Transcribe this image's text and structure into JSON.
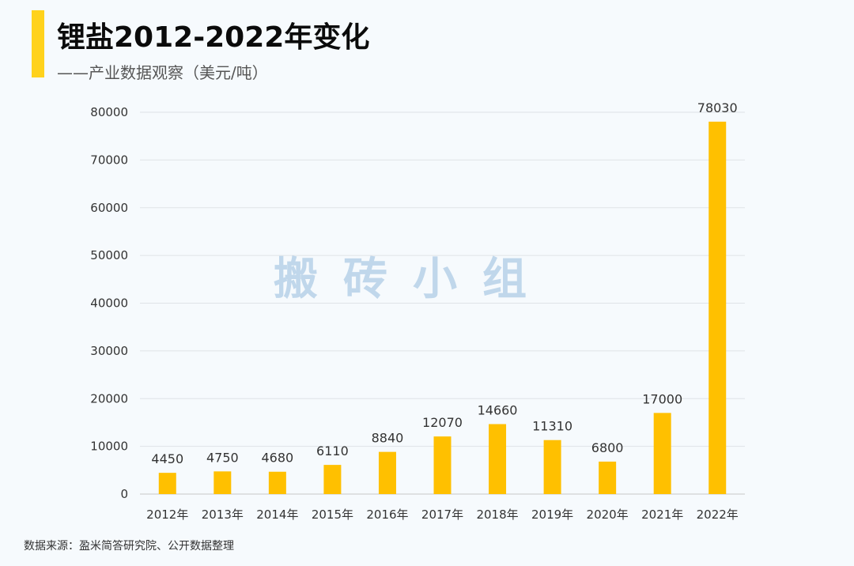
{
  "title": "锂盐2012-2022年变化",
  "subtitle": "——产业数据观察（美元/吨）",
  "watermark": "搬砖小组",
  "source": "数据来源：盈米简答研究院、公开数据整理",
  "colors": {
    "accent": "#ffd21c",
    "bar": "#ffc000",
    "background": "#f6fafd"
  },
  "chart_data": {
    "type": "bar",
    "title": "锂盐2012-2022年变化",
    "subtitle": "——产业数据观察（美元/吨）",
    "categories": [
      "2012年",
      "2013年",
      "2014年",
      "2015年",
      "2016年",
      "2017年",
      "2018年",
      "2019年",
      "2020年",
      "2021年",
      "2022年"
    ],
    "values": [
      4450,
      4750,
      4680,
      6110,
      8840,
      12070,
      14660,
      11310,
      6800,
      17000,
      78030
    ],
    "ylim": [
      0,
      80000
    ],
    "yticks": [
      0,
      10000,
      20000,
      30000,
      40000,
      50000,
      60000,
      70000,
      80000
    ],
    "grid": true,
    "data_labels": true,
    "legend": "none"
  }
}
